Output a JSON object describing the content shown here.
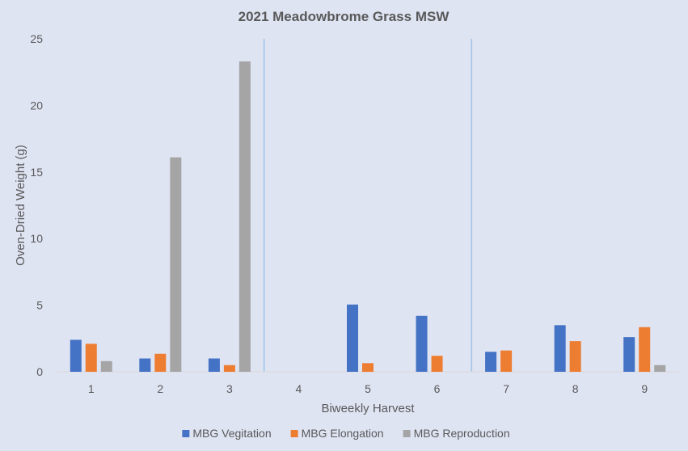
{
  "colors": {
    "background": "#dfe4f3",
    "axis_line": "#d9d9d9",
    "divider_line": "#9dc3e6",
    "text": "#595959"
  },
  "chart_data": {
    "type": "bar",
    "title": "2021 Meadowbrome Grass MSW",
    "xlabel": "Biweekly Harvest",
    "ylabel": "Oven-Dried Weight (g)",
    "ylim": [
      0,
      25
    ],
    "yticks": [
      0,
      5,
      10,
      15,
      20,
      25
    ],
    "categories": [
      "1",
      "2",
      "3",
      "4",
      "5",
      "6",
      "7",
      "8",
      "9"
    ],
    "series": [
      {
        "name": "MBG Vegitation",
        "color": "#4472c4",
        "values": [
          2.4,
          1.0,
          1.0,
          0,
          5.05,
          4.2,
          1.5,
          3.5,
          2.6
        ]
      },
      {
        "name": "MBG Elongation",
        "color": "#ed7d31",
        "values": [
          2.1,
          1.35,
          0.5,
          0,
          0.65,
          1.2,
          1.6,
          2.3,
          3.35
        ]
      },
      {
        "name": "MBG Reproduction",
        "color": "#a5a5a5",
        "values": [
          0.8,
          16.1,
          23.3,
          0,
          0,
          0,
          0,
          0,
          0.5
        ]
      }
    ],
    "dividers_after_category": [
      "3",
      "6"
    ],
    "grid": false,
    "legend_position": "bottom"
  }
}
